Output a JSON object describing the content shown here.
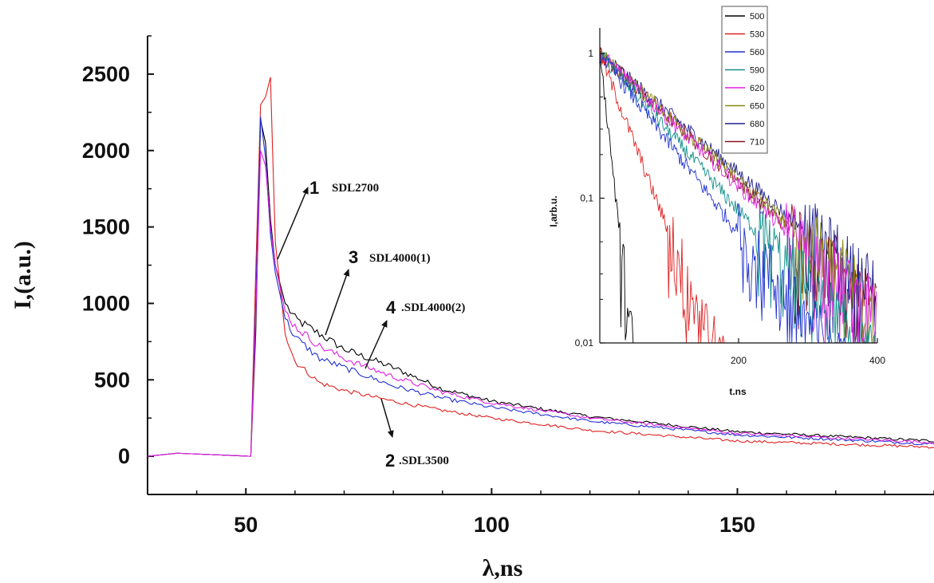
{
  "chart_data": [
    {
      "type": "line",
      "xlabel": "λ,ns",
      "ylabel": "I,(a.u.)",
      "xlim": [
        30,
        190
      ],
      "ylim": [
        -250,
        2750
      ],
      "xticks": [
        "50",
        "100",
        "150"
      ],
      "yticks": [
        "0",
        "500",
        "1000",
        "1500",
        "2000",
        "2500"
      ],
      "grid": false,
      "legend": "none",
      "series": [
        {
          "color": "#000000",
          "x": [
            30,
            36,
            51,
            52,
            53,
            54,
            55,
            56,
            58,
            60,
            65,
            70,
            80,
            90,
            100,
            120,
            150,
            190
          ],
          "y": [
            0,
            20,
            0,
            800,
            2200,
            2050,
            1550,
            1250,
            1000,
            900,
            800,
            700,
            580,
            440,
            360,
            260,
            160,
            100
          ]
        },
        {
          "color": "#e02020",
          "x": [
            30,
            36,
            51,
            52,
            53,
            54,
            55,
            56,
            58,
            60,
            65,
            70,
            80,
            90,
            100,
            120,
            150,
            190
          ],
          "y": [
            0,
            20,
            0,
            1200,
            2300,
            2350,
            2480,
            1400,
            800,
            620,
            480,
            430,
            360,
            300,
            250,
            170,
            100,
            60
          ]
        },
        {
          "color": "#2030d0",
          "x": [
            30,
            36,
            51,
            52,
            53,
            54,
            55,
            56,
            58,
            60,
            65,
            70,
            80,
            90,
            100,
            120,
            150,
            190
          ],
          "y": [
            0,
            20,
            0,
            1000,
            2220,
            1950,
            1450,
            1200,
            900,
            780,
            640,
            580,
            460,
            380,
            320,
            230,
            140,
            80
          ]
        },
        {
          "color": "#e020e0",
          "x": [
            30,
            36,
            51,
            52,
            53,
            54,
            55,
            56,
            58,
            60,
            65,
            70,
            80,
            90,
            100,
            120,
            150,
            190
          ],
          "y": [
            0,
            20,
            0,
            900,
            2000,
            1900,
            1500,
            1250,
            950,
            850,
            720,
            640,
            520,
            420,
            350,
            250,
            150,
            90
          ]
        }
      ],
      "annotations": [
        {
          "number": "1",
          "text": "SDL2700"
        },
        {
          "number": "2",
          "text": ".SDL3500"
        },
        {
          "number": "3",
          "text": "SDL4000(1)"
        },
        {
          "number": "4",
          "text": ".SDL4000(2)"
        }
      ]
    },
    {
      "type": "line",
      "xlabel": "t.ns",
      "ylabel": "I,arb.u.",
      "xscale": "linear",
      "yscale": "log",
      "xlim": [
        0,
        400
      ],
      "ylim": [
        0.01,
        1.5
      ],
      "xticks": [
        "200",
        "400"
      ],
      "yticks": [
        "1",
        "0,1",
        "0,01"
      ],
      "grid": false,
      "legend": "top-right",
      "series": [
        {
          "name": "500",
          "color": "#000000",
          "tau": 10
        },
        {
          "name": "530",
          "color": "#e02020",
          "tau": 35
        },
        {
          "name": "560",
          "color": "#2030d0",
          "tau": 70
        },
        {
          "name": "590",
          "color": "#10908a",
          "tau": 80
        },
        {
          "name": "620",
          "color": "#e020e0",
          "tau": 95
        },
        {
          "name": "650",
          "color": "#8a8a10",
          "tau": 100
        },
        {
          "name": "680",
          "color": "#202090",
          "tau": 105
        },
        {
          "name": "710",
          "color": "#8a1020",
          "tau": 98
        }
      ]
    }
  ]
}
